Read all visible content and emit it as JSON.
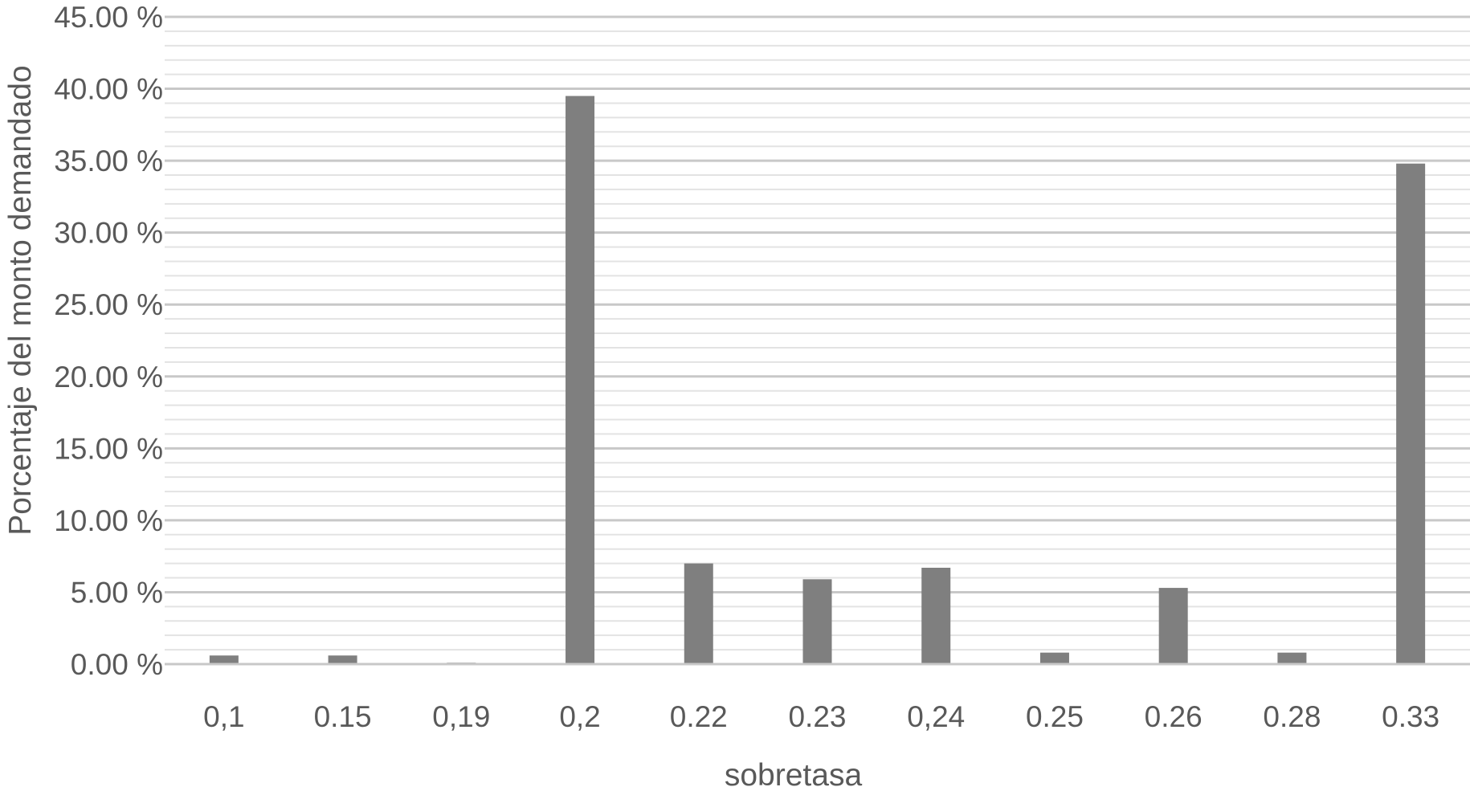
{
  "chart_data": {
    "type": "bar",
    "title": "",
    "xlabel": "sobretasa",
    "ylabel": "Porcentaje del monto demandado",
    "categories": [
      "0,1",
      "0.15",
      "0,19",
      "0,2",
      "0.22",
      "0.23",
      "0,24",
      "0.25",
      "0.26",
      "0.28",
      "0.33"
    ],
    "values": [
      0.6,
      0.6,
      0.1,
      39.5,
      7.0,
      5.9,
      6.7,
      0.8,
      5.3,
      0.8,
      34.8
    ],
    "ylim": [
      0,
      45
    ],
    "y_ticks": [
      "0.00 %",
      "5.00 %",
      "10.00 %",
      "15.00 %",
      "20.00 %",
      "25.00 %",
      "30.00 %",
      "35.00 %",
      "40.00 %",
      "45.00 %"
    ],
    "y_tick_values": [
      0,
      5,
      10,
      15,
      20,
      25,
      30,
      35,
      40,
      45
    ],
    "grid": true,
    "minor_grid": true,
    "legend": "none",
    "colors": {
      "bar": "#7f7f7f",
      "major_grid": "#c8c8c8",
      "minor_grid": "#e3e3e3",
      "axis": "#c8c8c8",
      "text": "#595959"
    }
  }
}
